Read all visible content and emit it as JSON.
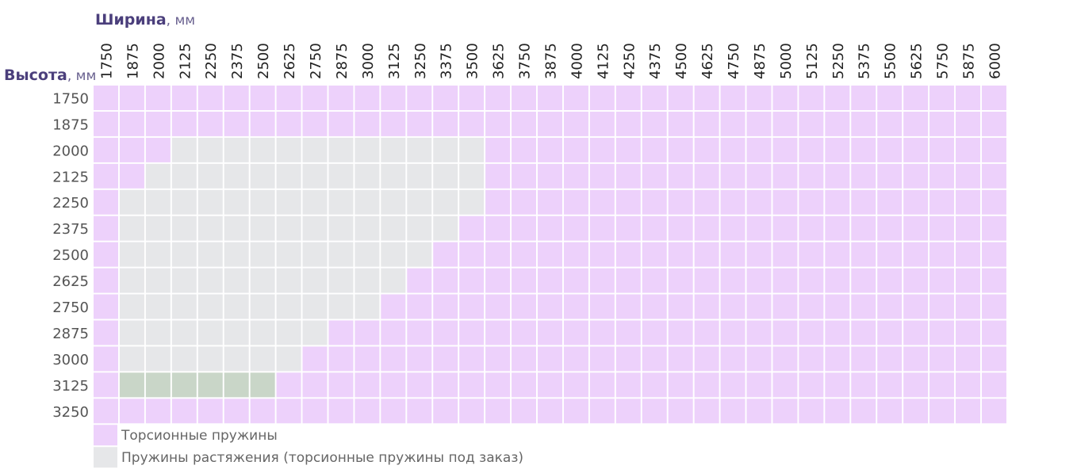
{
  "width_header": {
    "title": "Ширина",
    "unit": ", мм"
  },
  "height_header": {
    "title": "Высота",
    "unit": ", мм"
  },
  "columns": [
    "1750",
    "1875",
    "2000",
    "2125",
    "2250",
    "2375",
    "2500",
    "2625",
    "2750",
    "2875",
    "3000",
    "3125",
    "3250",
    "3375",
    "3500",
    "3625",
    "3750",
    "3875",
    "4000",
    "4125",
    "4250",
    "4375",
    "4500",
    "4625",
    "4750",
    "4875",
    "5000",
    "5125",
    "5250",
    "5375",
    "5500",
    "5625",
    "5750",
    "5875",
    "6000"
  ],
  "rows": [
    {
      "label": "1750",
      "cells": [
        "#edd1fb",
        "#edd1fb",
        "#edd1fb",
        "#edd1fb",
        "#edd1fb",
        "#edd1fb",
        "#edd1fb",
        "#edd1fb",
        "#edd1fb",
        "#edd1fb",
        "#edd1fb",
        "#edd1fb",
        "#edd1fb",
        "#edd1fb",
        "#edd1fb",
        "#edd1fb",
        "#edd1fb",
        "#edd1fb",
        "#edd1fb",
        "#edd1fb",
        "#edd1fb",
        "#edd1fb",
        "#edd1fb",
        "#edd1fb",
        "#edd1fb",
        "#edd1fb",
        "#edd1fb",
        "#edd1fb",
        "#edd1fb",
        "#edd1fb",
        "#edd1fb",
        "#edd1fb",
        "#edd1fb",
        "#edd1fb",
        "#edd1fb"
      ]
    },
    {
      "label": "1875",
      "cells": [
        "#edd1fb",
        "#edd1fb",
        "#edd1fb",
        "#edd1fb",
        "#edd1fb",
        "#edd1fb",
        "#edd1fb",
        "#edd1fb",
        "#edd1fb",
        "#edd1fb",
        "#edd1fb",
        "#edd1fb",
        "#edd1fb",
        "#edd1fb",
        "#edd1fb",
        "#edd1fb",
        "#edd1fb",
        "#edd1fb",
        "#edd1fb",
        "#edd1fb",
        "#edd1fb",
        "#edd1fb",
        "#edd1fb",
        "#edd1fb",
        "#edd1fb",
        "#edd1fb",
        "#edd1fb",
        "#edd1fb",
        "#edd1fb",
        "#edd1fb",
        "#edd1fb",
        "#edd1fb",
        "#edd1fb",
        "#edd1fb",
        "#edd1fb"
      ]
    },
    {
      "label": "2000",
      "cells": [
        "#edd1fb",
        "#edd1fb",
        "#edd1fb",
        "#e6e7e9",
        "#e6e7e9",
        "#e6e7e9",
        "#e6e7e9",
        "#e6e7e9",
        "#e6e7e9",
        "#e6e7e9",
        "#e6e7e9",
        "#e6e7e9",
        "#e6e7e9",
        "#e6e7e9",
        "#e6e7e9",
        "#edd1fb",
        "#edd1fb",
        "#edd1fb",
        "#edd1fb",
        "#edd1fb",
        "#edd1fb",
        "#edd1fb",
        "#edd1fb",
        "#edd1fb",
        "#edd1fb",
        "#edd1fb",
        "#edd1fb",
        "#edd1fb",
        "#edd1fb",
        "#edd1fb",
        "#edd1fb",
        "#edd1fb",
        "#edd1fb",
        "#edd1fb",
        "#edd1fb"
      ]
    },
    {
      "label": "2125",
      "cells": [
        "#edd1fb",
        "#edd1fb",
        "#e6e7e9",
        "#e6e7e9",
        "#e6e7e9",
        "#e6e7e9",
        "#e6e7e9",
        "#e6e7e9",
        "#e6e7e9",
        "#e6e7e9",
        "#e6e7e9",
        "#e6e7e9",
        "#e6e7e9",
        "#e6e7e9",
        "#e6e7e9",
        "#edd1fb",
        "#edd1fb",
        "#edd1fb",
        "#edd1fb",
        "#edd1fb",
        "#edd1fb",
        "#edd1fb",
        "#edd1fb",
        "#edd1fb",
        "#edd1fb",
        "#edd1fb",
        "#edd1fb",
        "#edd1fb",
        "#edd1fb",
        "#edd1fb",
        "#edd1fb",
        "#edd1fb",
        "#edd1fb",
        "#edd1fb",
        "#edd1fb"
      ]
    },
    {
      "label": "2250",
      "cells": [
        "#edd1fb",
        "#e6e7e9",
        "#e6e7e9",
        "#e6e7e9",
        "#e6e7e9",
        "#e6e7e9",
        "#e6e7e9",
        "#e6e7e9",
        "#e6e7e9",
        "#e6e7e9",
        "#e6e7e9",
        "#e6e7e9",
        "#e6e7e9",
        "#e6e7e9",
        "#e6e7e9",
        "#edd1fb",
        "#edd1fb",
        "#edd1fb",
        "#edd1fb",
        "#edd1fb",
        "#edd1fb",
        "#edd1fb",
        "#edd1fb",
        "#edd1fb",
        "#edd1fb",
        "#edd1fb",
        "#edd1fb",
        "#edd1fb",
        "#edd1fb",
        "#edd1fb",
        "#edd1fb",
        "#edd1fb",
        "#edd1fb",
        "#edd1fb",
        "#edd1fb"
      ]
    },
    {
      "label": "2375",
      "cells": [
        "#edd1fb",
        "#e6e7e9",
        "#e6e7e9",
        "#e6e7e9",
        "#e6e7e9",
        "#e6e7e9",
        "#e6e7e9",
        "#e6e7e9",
        "#e6e7e9",
        "#e6e7e9",
        "#e6e7e9",
        "#e6e7e9",
        "#e6e7e9",
        "#e6e7e9",
        "#edd1fb",
        "#edd1fb",
        "#edd1fb",
        "#edd1fb",
        "#edd1fb",
        "#edd1fb",
        "#edd1fb",
        "#edd1fb",
        "#edd1fb",
        "#edd1fb",
        "#edd1fb",
        "#edd1fb",
        "#edd1fb",
        "#edd1fb",
        "#edd1fb",
        "#edd1fb",
        "#edd1fb",
        "#edd1fb",
        "#edd1fb",
        "#edd1fb",
        "#edd1fb"
      ]
    },
    {
      "label": "2500",
      "cells": [
        "#edd1fb",
        "#e6e7e9",
        "#e6e7e9",
        "#e6e7e9",
        "#e6e7e9",
        "#e6e7e9",
        "#e6e7e9",
        "#e6e7e9",
        "#e6e7e9",
        "#e6e7e9",
        "#e6e7e9",
        "#e6e7e9",
        "#e6e7e9",
        "#edd1fb",
        "#edd1fb",
        "#edd1fb",
        "#edd1fb",
        "#edd1fb",
        "#edd1fb",
        "#edd1fb",
        "#edd1fb",
        "#edd1fb",
        "#edd1fb",
        "#edd1fb",
        "#edd1fb",
        "#edd1fb",
        "#edd1fb",
        "#edd1fb",
        "#edd1fb",
        "#edd1fb",
        "#edd1fb",
        "#edd1fb",
        "#edd1fb",
        "#edd1fb",
        "#edd1fb"
      ]
    },
    {
      "label": "2625",
      "cells": [
        "#edd1fb",
        "#e6e7e9",
        "#e6e7e9",
        "#e6e7e9",
        "#e6e7e9",
        "#e6e7e9",
        "#e6e7e9",
        "#e6e7e9",
        "#e6e7e9",
        "#e6e7e9",
        "#e6e7e9",
        "#e6e7e9",
        "#edd1fb",
        "#edd1fb",
        "#edd1fb",
        "#edd1fb",
        "#edd1fb",
        "#edd1fb",
        "#edd1fb",
        "#edd1fb",
        "#edd1fb",
        "#edd1fb",
        "#edd1fb",
        "#edd1fb",
        "#edd1fb",
        "#edd1fb",
        "#edd1fb",
        "#edd1fb",
        "#edd1fb",
        "#edd1fb",
        "#edd1fb",
        "#edd1fb",
        "#edd1fb",
        "#edd1fb",
        "#edd1fb"
      ]
    },
    {
      "label": "2750",
      "cells": [
        "#edd1fb",
        "#e6e7e9",
        "#e6e7e9",
        "#e6e7e9",
        "#e6e7e9",
        "#e6e7e9",
        "#e6e7e9",
        "#e6e7e9",
        "#e6e7e9",
        "#e6e7e9",
        "#e6e7e9",
        "#edd1fb",
        "#edd1fb",
        "#edd1fb",
        "#edd1fb",
        "#edd1fb",
        "#edd1fb",
        "#edd1fb",
        "#edd1fb",
        "#edd1fb",
        "#edd1fb",
        "#edd1fb",
        "#edd1fb",
        "#edd1fb",
        "#edd1fb",
        "#edd1fb",
        "#edd1fb",
        "#edd1fb",
        "#edd1fb",
        "#edd1fb",
        "#edd1fb",
        "#edd1fb",
        "#edd1fb",
        "#edd1fb",
        "#edd1fb"
      ]
    },
    {
      "label": "2875",
      "cells": [
        "#edd1fb",
        "#e6e7e9",
        "#e6e7e9",
        "#e6e7e9",
        "#e6e7e9",
        "#e6e7e9",
        "#e6e7e9",
        "#e6e7e9",
        "#e6e7e9",
        "#edd1fb",
        "#edd1fb",
        "#edd1fb",
        "#edd1fb",
        "#edd1fb",
        "#edd1fb",
        "#edd1fb",
        "#edd1fb",
        "#edd1fb",
        "#edd1fb",
        "#edd1fb",
        "#edd1fb",
        "#edd1fb",
        "#edd1fb",
        "#edd1fb",
        "#edd1fb",
        "#edd1fb",
        "#edd1fb",
        "#edd1fb",
        "#edd1fb",
        "#edd1fb",
        "#edd1fb",
        "#edd1fb",
        "#edd1fb",
        "#edd1fb",
        "#edd1fb"
      ]
    },
    {
      "label": "3000",
      "cells": [
        "#edd1fb",
        "#e6e7e9",
        "#e6e7e9",
        "#e6e7e9",
        "#e6e7e9",
        "#e6e7e9",
        "#e6e7e9",
        "#e6e7e9",
        "#edd1fb",
        "#edd1fb",
        "#edd1fb",
        "#edd1fb",
        "#edd1fb",
        "#edd1fb",
        "#edd1fb",
        "#edd1fb",
        "#edd1fb",
        "#edd1fb",
        "#edd1fb",
        "#edd1fb",
        "#edd1fb",
        "#edd1fb",
        "#edd1fb",
        "#edd1fb",
        "#edd1fb",
        "#edd1fb",
        "#edd1fb",
        "#edd1fb",
        "#edd1fb",
        "#edd1fb",
        "#edd1fb",
        "#edd1fb",
        "#edd1fb",
        "#edd1fb",
        "#edd1fb"
      ]
    },
    {
      "label": "3125",
      "cells": [
        "#edd1fb",
        "#c9d6c8",
        "#c9d6c8",
        "#c9d6c8",
        "#c9d6c8",
        "#c9d6c8",
        "#c9d6c8",
        "#edd1fb",
        "#edd1fb",
        "#edd1fb",
        "#edd1fb",
        "#edd1fb",
        "#edd1fb",
        "#edd1fb",
        "#edd1fb",
        "#edd1fb",
        "#edd1fb",
        "#edd1fb",
        "#edd1fb",
        "#edd1fb",
        "#edd1fb",
        "#edd1fb",
        "#edd1fb",
        "#edd1fb",
        "#edd1fb",
        "#edd1fb",
        "#edd1fb",
        "#edd1fb",
        "#edd1fb",
        "#edd1fb",
        "#edd1fb",
        "#edd1fb",
        "#edd1fb",
        "#edd1fb",
        "#edd1fb"
      ]
    },
    {
      "label": "3250",
      "cells": [
        "#edd1fb",
        "#edd1fb",
        "#edd1fb",
        "#edd1fb",
        "#edd1fb",
        "#edd1fb",
        "#edd1fb",
        "#edd1fb",
        "#edd1fb",
        "#edd1fb",
        "#edd1fb",
        "#edd1fb",
        "#edd1fb",
        "#edd1fb",
        "#edd1fb",
        "#edd1fb",
        "#edd1fb",
        "#edd1fb",
        "#edd1fb",
        "#edd1fb",
        "#edd1fb",
        "#edd1fb",
        "#edd1fb",
        "#edd1fb",
        "#edd1fb",
        "#edd1fb",
        "#edd1fb",
        "#edd1fb",
        "#edd1fb",
        "#edd1fb",
        "#edd1fb",
        "#edd1fb",
        "#edd1fb",
        "#edd1fb",
        "#edd1fb"
      ]
    }
  ],
  "legend": [
    {
      "label": "Торсионные пружины",
      "color": "#edd1fb"
    },
    {
      "label": "Пружины растяжения (торсионные пружины под заказ)",
      "color": "#e6e7e9"
    }
  ]
}
